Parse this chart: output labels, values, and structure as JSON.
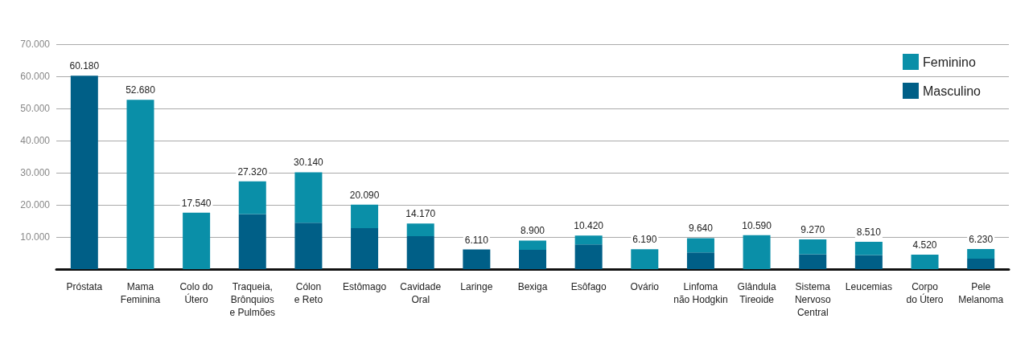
{
  "chart_data": {
    "type": "bar",
    "stacked": true,
    "categories": [
      "Próstata",
      "Mama\nFeminina",
      "Colo do\nÚtero",
      "Traqueia,\nBrônquios\ne Pulmões",
      "Cólon\ne Reto",
      "Estômago",
      "Cavidade\nOral",
      "Laringe",
      "Bexiga",
      "Esôfago",
      "Ovário",
      "Linfoma\nnão Hodgkin",
      "Glândula\nTireoide",
      "Sistema\nNervoso\nCentral",
      "Leucemias",
      "Corpo\ndo Útero",
      "Pele\nMelanoma"
    ],
    "series": [
      {
        "name": "Masculino",
        "color": "#005f87",
        "values": [
          60180,
          null,
          null,
          17100,
          14460,
          12740,
          10260,
          6110,
          6010,
          7690,
          null,
          5190,
          null,
          4640,
          4380,
          null,
          3240
        ]
      },
      {
        "name": "Feminino",
        "color": "#0a8fa8",
        "values": [
          null,
          52680,
          17540,
          10220,
          15680,
          7350,
          3910,
          null,
          2890,
          2730,
          6190,
          4450,
          10590,
          4630,
          4130,
          4520,
          2990
        ]
      }
    ],
    "totals": [
      "60.180",
      "52.680",
      "17.540",
      "27.320",
      "30.140",
      "20.090",
      "14.170",
      "6.110",
      "8.900",
      "10.420",
      "6.190",
      "9.640",
      "10.590",
      "9.270",
      "8.510",
      "4.520",
      "6.230"
    ],
    "ylim": [
      0,
      70000
    ],
    "yticks": [
      {
        "value": 0,
        "label": null
      },
      {
        "value": 10000,
        "label": "10.000"
      },
      {
        "value": 20000,
        "label": "20.000"
      },
      {
        "value": 30000,
        "label": "30.000"
      },
      {
        "value": 40000,
        "label": "40.000"
      },
      {
        "value": 50000,
        "label": "50.000"
      },
      {
        "value": 60000,
        "label": "60.000"
      },
      {
        "value": 70000,
        "label": "70.000"
      }
    ],
    "grid": "y",
    "legend": "top right"
  }
}
